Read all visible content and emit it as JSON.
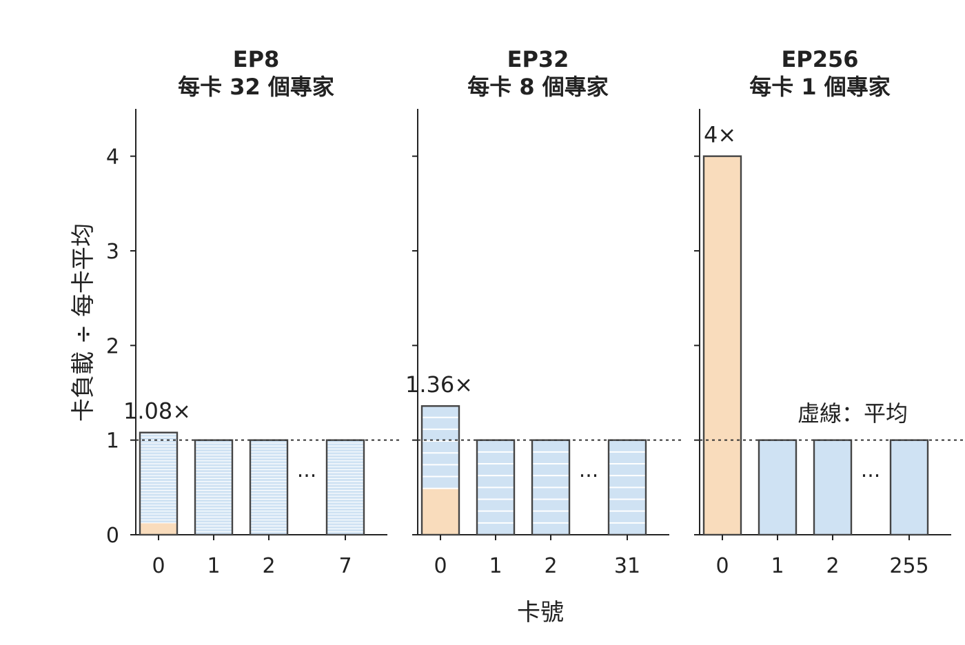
{
  "colors": {
    "bar_blue": "#cfe2f3",
    "bar_orange": "#f9dcbc",
    "bar_edge": "#444444",
    "stripe": "#ffffff",
    "axis": "#222222",
    "mean_line": "#333333"
  },
  "figure": {
    "ylabel": "卡負載 ÷ 每卡平均",
    "xlabel": "卡號",
    "legend_note": "虛線：平均"
  },
  "chart_data": [
    {
      "type": "bar",
      "title": "EP8\n每卡 32 個專家",
      "categories": [
        "0",
        "1",
        "2",
        "7"
      ],
      "gap_label": "···",
      "values": [
        1.08,
        1.0,
        1.0,
        1.0
      ],
      "hot_expert_share": [
        0.125,
        0,
        0,
        0
      ],
      "stripes_per_card": 32,
      "annotation": "1.08×",
      "mean": 1.0,
      "ylim": [
        0,
        4.5
      ],
      "yticks": [
        0,
        1,
        2,
        3,
        4
      ]
    },
    {
      "type": "bar",
      "title": "EP32\n每卡 8 個專家",
      "categories": [
        "0",
        "1",
        "2",
        "31"
      ],
      "gap_label": "···",
      "values": [
        1.36,
        1.0,
        1.0,
        1.0
      ],
      "hot_expert_share": [
        0.49,
        0,
        0,
        0
      ],
      "stripes_per_card": 8,
      "annotation": "1.36×",
      "mean": 1.0,
      "ylim": [
        0,
        4.5
      ],
      "yticks": [
        0,
        1,
        2,
        3,
        4
      ]
    },
    {
      "type": "bar",
      "title": "EP256\n每卡 1 個專家",
      "categories": [
        "0",
        "1",
        "2",
        "255"
      ],
      "gap_label": "···",
      "values": [
        4.0,
        1.0,
        1.0,
        1.0
      ],
      "hot_expert_share": [
        4.0,
        0,
        0,
        0
      ],
      "stripes_per_card": 1,
      "annotation": "4×",
      "mean": 1.0,
      "ylim": [
        0,
        4.5
      ],
      "yticks": [
        0,
        1,
        2,
        3,
        4
      ]
    }
  ]
}
